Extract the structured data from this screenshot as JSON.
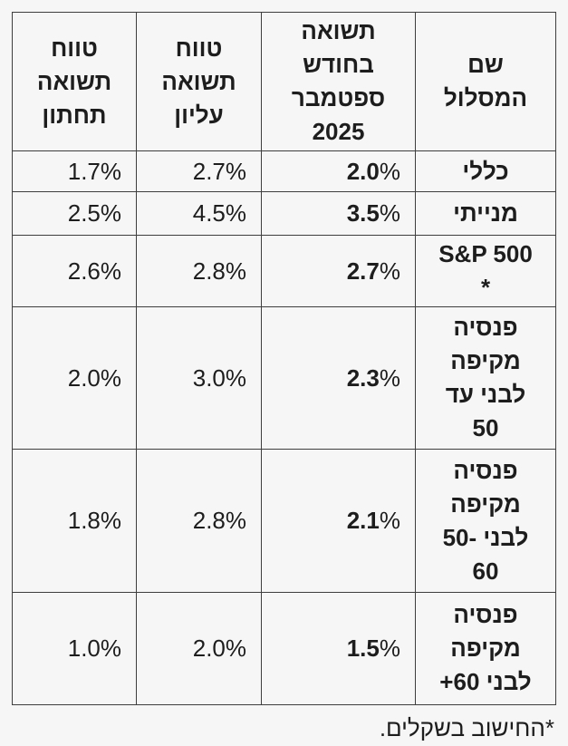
{
  "colors": {
    "background": "#f6f6f6",
    "border": "#3e3e3e",
    "text": "#1d1d1d"
  },
  "chart_data": {
    "type": "table",
    "direction": "rtl",
    "percent_sign": "%",
    "columns": [
      {
        "key": "name",
        "label": "שם המסלול"
      },
      {
        "key": "september",
        "label": "תשואה בחודש ספטמבר 2025"
      },
      {
        "key": "upper",
        "label": "טווח תשואה עליון"
      },
      {
        "key": "lower",
        "label": "טווח תשואה תחתון"
      }
    ],
    "rows": [
      {
        "name": "כללי",
        "september": "2.0",
        "upper": "2.7%",
        "lower": "1.7%"
      },
      {
        "name": "מנייתי",
        "september": "3.5",
        "upper": "4.5%",
        "lower": "2.5%"
      },
      {
        "name": "S&P 500 *",
        "september": "2.7",
        "upper": "2.8%",
        "lower": "2.6%"
      },
      {
        "name": "פנסיה מקיפה לבני עד 50",
        "september": "2.3",
        "upper": "3.0%",
        "lower": "2.0%"
      },
      {
        "name": "פנסיה מקיפה לבני 50-60",
        "september": "2.1",
        "upper": "2.8%",
        "lower": "1.8%"
      },
      {
        "name": "פנסיה מקיפה לבני 60+",
        "september": "1.5",
        "upper": "2.0%",
        "lower": "1.0%"
      }
    ],
    "footnote": "*החישוב בשקלים."
  }
}
